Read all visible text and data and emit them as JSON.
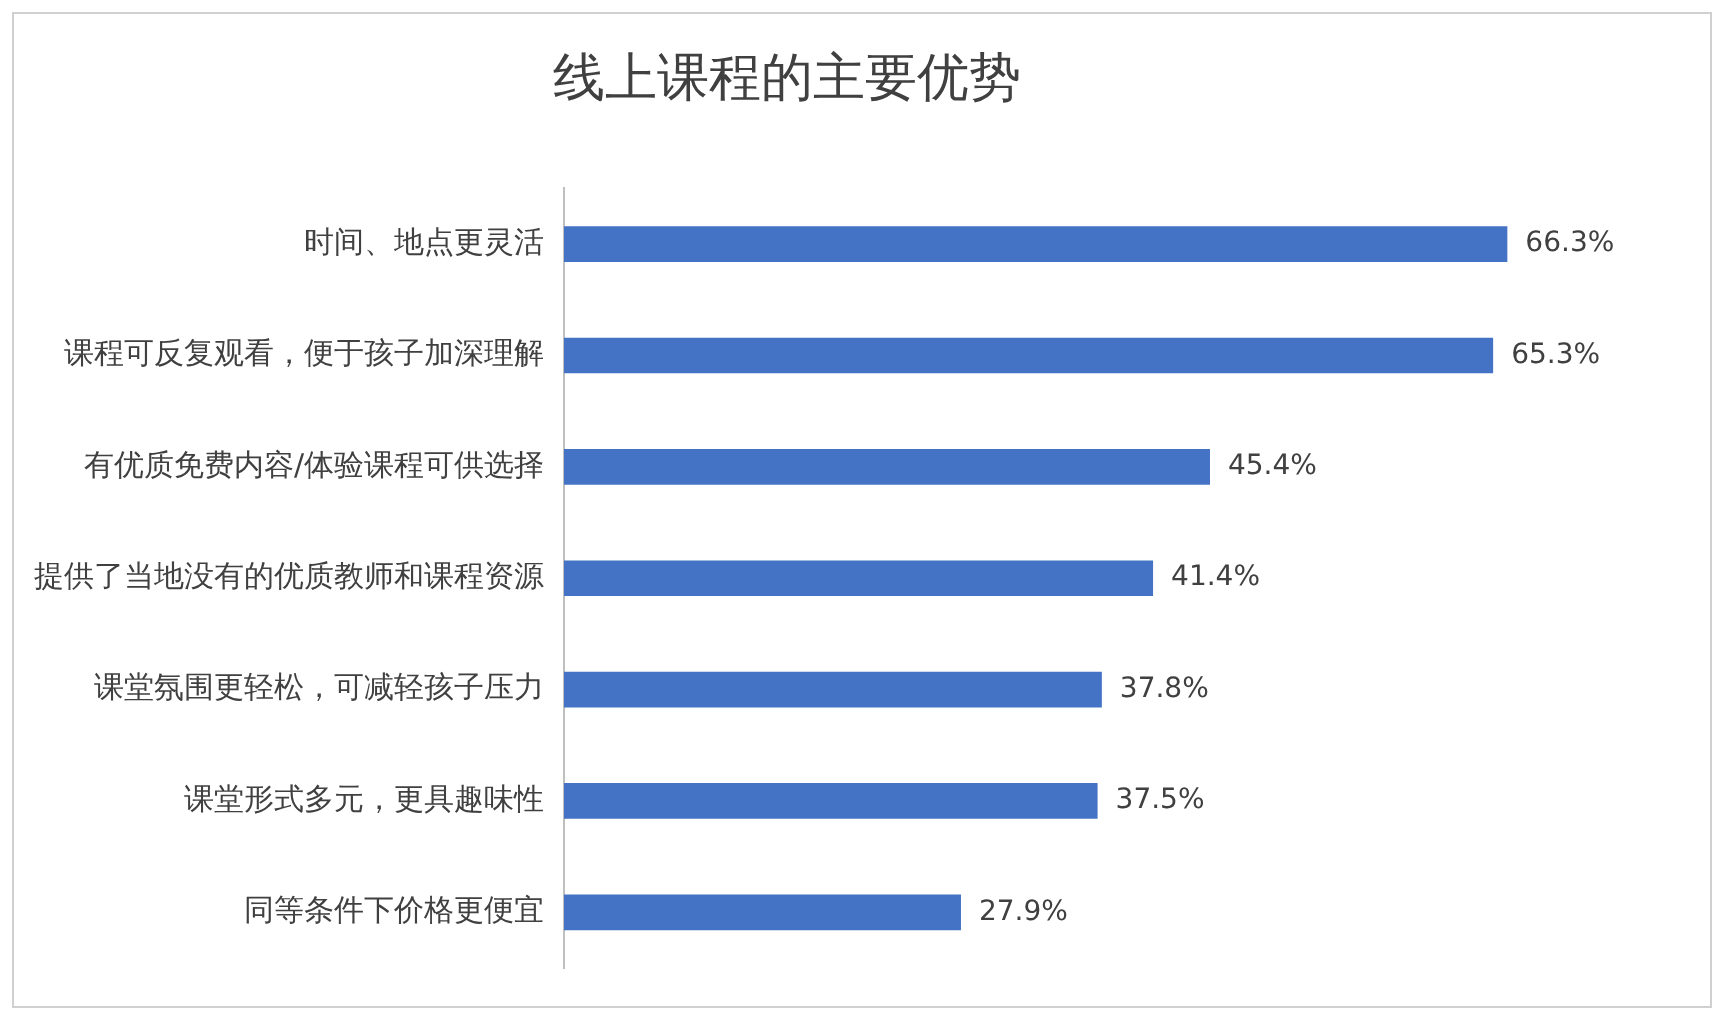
{
  "chart_data": {
    "type": "bar",
    "orientation": "horizontal",
    "title": "线上课程的主要优势",
    "categories": [
      "时间、地点更灵活",
      "课程可反复观看，便于孩子加深理解",
      "有优质免费内容/体验课程可供选择",
      "提供了当地没有的优质教师和课程资源",
      "课堂氛围更轻松，可减轻孩子压力",
      "课堂形式多元，更具趣味性",
      "同等条件下价格更便宜"
    ],
    "values": [
      66.3,
      65.3,
      45.4,
      41.4,
      37.8,
      37.5,
      27.9
    ],
    "value_labels": [
      "66.3%",
      "65.3%",
      "45.4%",
      "41.4%",
      "37.8%",
      "37.5%",
      "27.9%"
    ],
    "color": "#4472c4",
    "tick_labels": "y",
    "legend": false
  }
}
